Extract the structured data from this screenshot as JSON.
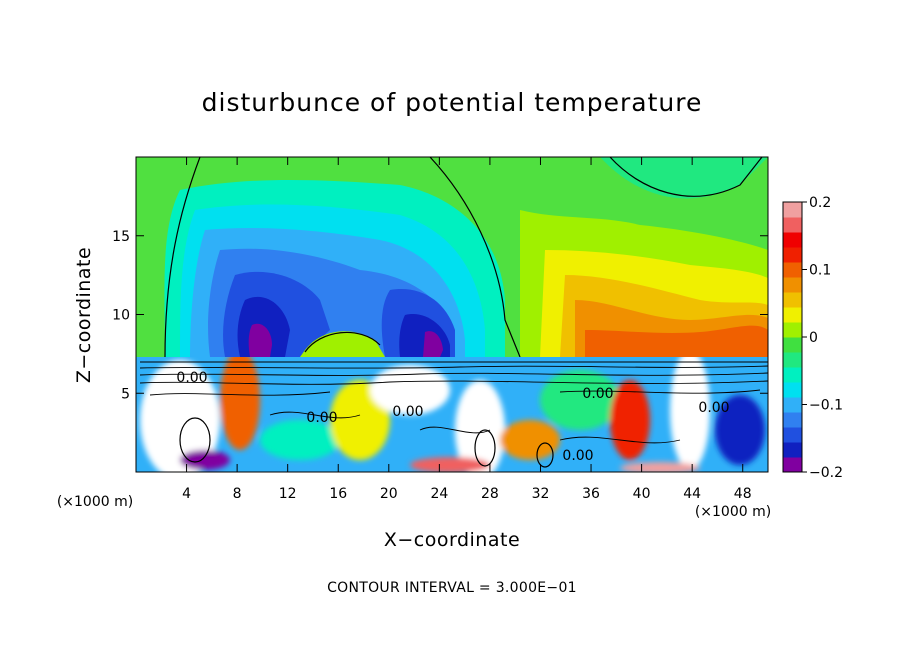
{
  "chart_data": {
    "type": "heatmap",
    "title": "disturbunce of potential temperature",
    "xlabel": "X−coordinate",
    "ylabel": "Z−coordinate",
    "x_unit": "(×1000 m)",
    "xlim": [
      0,
      50
    ],
    "ylim": [
      0,
      20
    ],
    "x_ticks": [
      4,
      8,
      12,
      16,
      20,
      24,
      28,
      32,
      36,
      40,
      44,
      48
    ],
    "y_ticks": [
      5,
      10,
      15
    ],
    "colorbar": {
      "range": [
        -0.2,
        0.2
      ],
      "ticks": [
        "0.2",
        "0.1",
        "0",
        "−0.1",
        "−0.2"
      ],
      "colors": [
        "#8000a0",
        "#1020c0",
        "#2050e0",
        "#3080f0",
        "#30b0f8",
        "#00e0f0",
        "#00f0c0",
        "#20e880",
        "#40e040",
        "#a0f000",
        "#f0f000",
        "#f0c000",
        "#f09000",
        "#f06000",
        "#f02000",
        "#f00000",
        "#f06060",
        "#f0a0a0"
      ]
    },
    "contour_labels": [
      "0.00",
      "0.00",
      "0.00",
      "0.00",
      "0.00",
      "0.00"
    ],
    "annotation": "CONTOUR INTERVAL = 3.000E−01"
  }
}
